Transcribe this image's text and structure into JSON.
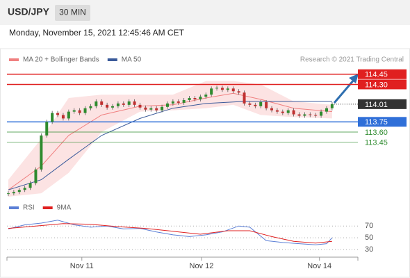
{
  "header": {
    "symbol": "USD/JPY",
    "interval": "30 MIN",
    "timestamp": "Monday, November 15, 2021 12:45:46 AM CET",
    "credit": "Research © 2021 Trading Central"
  },
  "chart_data": [
    {
      "type": "candlestick",
      "close": [
        112.7,
        112.72,
        112.75,
        112.78,
        112.85,
        113.05,
        113.55,
        113.75,
        113.88,
        113.85,
        113.8,
        113.9,
        113.92,
        113.88,
        113.95,
        113.98,
        114.05,
        114.0,
        113.96,
        113.98,
        114.02,
        114.0,
        114.05,
        114.0,
        113.96,
        113.93,
        113.95,
        113.92,
        113.97,
        114.02,
        114.05,
        114.03,
        114.07,
        114.1,
        114.08,
        114.12,
        114.15,
        114.24,
        114.25,
        114.22,
        114.24,
        114.2,
        114.18,
        114.02,
        114.0,
        113.98,
        114.04,
        113.95,
        113.92,
        113.9,
        113.88,
        113.92,
        113.86,
        113.84,
        113.86,
        113.85,
        113.84,
        113.9,
        113.95,
        114.01
      ],
      "series": [
        {
          "name": "MA 20 + Bollinger Bands",
          "color": "#f08080",
          "x": [
            0,
            6,
            11,
            17,
            24,
            30,
            36,
            41,
            46,
            52,
            59
          ],
          "values": [
            112.75,
            113.1,
            113.55,
            113.85,
            113.98,
            114.0,
            114.1,
            114.17,
            114.08,
            113.95,
            113.9
          ],
          "upper": [
            112.9,
            113.5,
            114.1,
            114.15,
            114.15,
            114.15,
            114.35,
            114.35,
            114.3,
            114.05,
            114.0
          ],
          "lower": [
            112.65,
            112.7,
            113.0,
            113.6,
            113.9,
            113.92,
            113.95,
            114.0,
            113.85,
            113.82,
            113.8
          ]
        },
        {
          "name": "MA 50",
          "color": "#3a5a9a",
          "x": [
            0,
            6,
            11,
            17,
            24,
            30,
            36,
            43,
            49,
            59
          ],
          "values": [
            112.75,
            112.9,
            113.2,
            113.55,
            113.8,
            113.95,
            114.02,
            114.05,
            114.05,
            114.05
          ]
        }
      ],
      "levels": [
        {
          "value": 114.45,
          "color": "#e02020",
          "box": true
        },
        {
          "value": 114.3,
          "label": "114.30",
          "color": "#e02020",
          "box": true
        },
        {
          "value": 114.01,
          "color": "#333333",
          "box": true
        },
        {
          "value": 113.75,
          "color": "#2f6fd8",
          "box": true
        },
        {
          "value": 113.6,
          "label": "113.60",
          "color": "#2e8b2e",
          "box": false
        },
        {
          "value": 113.45,
          "color": "#2e8b2e",
          "box": false
        }
      ],
      "xlim": [
        -0.25,
        63.7
      ],
      "ylim": [
        112.63,
        114.56
      ],
      "xticks": [
        {
          "value": 13.4,
          "label": "Nov 11"
        },
        {
          "value": 35.2,
          "label": "Nov 12"
        },
        {
          "value": 56.7,
          "label": "Nov 14"
        }
      ]
    },
    {
      "type": "line",
      "series": [
        {
          "name": "RSI",
          "color": "#5b7fd6",
          "x": [
            0,
            3,
            6,
            9,
            12,
            15,
            18,
            21,
            24,
            27,
            30,
            33,
            36,
            39,
            42,
            44,
            47,
            50,
            53,
            56,
            58,
            59
          ],
          "values": [
            65,
            72,
            75,
            80,
            72,
            68,
            70,
            65,
            66,
            60,
            55,
            52,
            55,
            60,
            70,
            68,
            45,
            42,
            40,
            38,
            40,
            50
          ]
        },
        {
          "name": "9MA",
          "color": "#e02020",
          "x": [
            0,
            5,
            10,
            15,
            20,
            25,
            30,
            35,
            40,
            44,
            48,
            52,
            56,
            59
          ],
          "values": [
            66,
            70,
            74,
            73,
            69,
            66,
            61,
            56,
            62,
            62,
            52,
            44,
            41,
            44
          ]
        }
      ],
      "xlim": [
        -0.25,
        63.7
      ],
      "ylim": [
        17,
        88
      ],
      "yticks": [
        70,
        50,
        30
      ]
    }
  ]
}
